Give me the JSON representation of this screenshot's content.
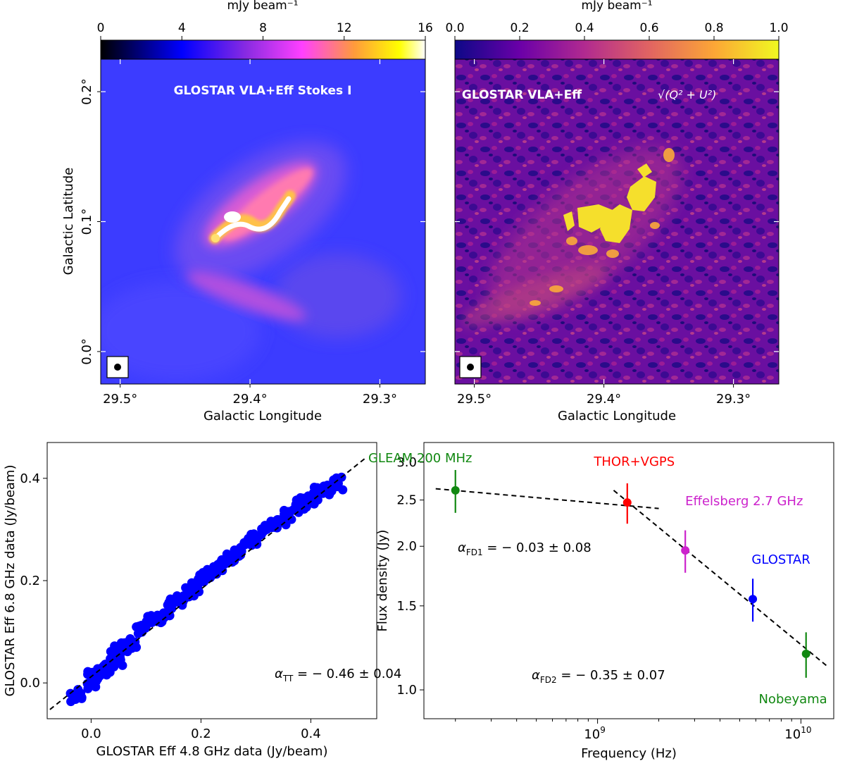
{
  "panels": {
    "a": {
      "title": "GLOSTAR VLA+Eff Stokes I",
      "colorbar": {
        "label": "mJy beam⁻¹",
        "ticks": [
          "0",
          "4",
          "8",
          "12",
          "16"
        ],
        "range": [
          0,
          16
        ],
        "colormap": "gnuplot2",
        "colors": [
          "#000000",
          "#0000ff",
          "#8a2be2",
          "#ff40ff",
          "#ff9a3c",
          "#ffff00",
          "#ffffff"
        ]
      },
      "xlabel": "Galactic Longitude",
      "ylabel": "Galactic Latitude",
      "xticks": [
        "29.5°",
        "29.4°",
        "29.3°"
      ],
      "yticks": [
        "0.0°",
        "0.1°",
        "0.2°"
      ]
    },
    "b": {
      "title_prefix": "GLOSTAR VLA+Eff",
      "title_math": "√(Q² + U²)",
      "colorbar": {
        "label": "mJy beam⁻¹",
        "ticks": [
          "0.0",
          "0.2",
          "0.4",
          "0.6",
          "0.8",
          "1.0"
        ],
        "range": [
          0.0,
          1.0
        ],
        "colormap": "plasma",
        "colors": [
          "#0d0887",
          "#6a00a8",
          "#b12a90",
          "#e16462",
          "#fca636",
          "#f0f921"
        ]
      },
      "xlabel": "Galactic Longitude",
      "xticks": [
        "29.5°",
        "29.4°",
        "29.3°"
      ]
    },
    "c": {
      "xlabel": "GLOSTAR Eff 4.8 GHz data (Jy/beam)",
      "ylabel": "GLOSTAR Eff 6.8 GHz data (Jy/beam)",
      "xticks": [
        "0.0",
        "0.2",
        "0.4"
      ],
      "yticks": [
        "0.0",
        "0.2",
        "0.4"
      ],
      "annotation_main": "α",
      "annotation_sub": "TT",
      "annotation_rest": " = − 0.46 ± 0.04"
    },
    "d": {
      "xlabel": "Frequency (Hz)",
      "ylabel": "Flux density (Jy)",
      "xticks_base": [
        "10",
        "10"
      ],
      "xticks_exp": [
        "9",
        "10"
      ],
      "yticks": [
        "1.0",
        "1.5",
        "2.0",
        "2.5",
        "3.0"
      ],
      "fit1_main": "α",
      "fit1_sub": "FD1",
      "fit1_rest": " = − 0.03 ± 0.08",
      "fit2_main": "α",
      "fit2_sub": "FD2",
      "fit2_rest": " = − 0.35 ± 0.07",
      "labels": [
        "GLEAM 200 MHz",
        "THOR+VGPS",
        "Effelsberg 2.7 GHz",
        "GLOSTAR",
        "Nobeyama"
      ]
    }
  },
  "chart_data": [
    {
      "type": "heatmap",
      "panel": "a",
      "title": "GLOSTAR VLA+Eff Stokes I",
      "xlabel": "Galactic Longitude",
      "ylabel": "Galactic Latitude",
      "xlim": [
        29.515,
        29.265
      ],
      "ylim": [
        -0.025,
        0.225
      ],
      "colorbar_range": [
        0,
        16
      ],
      "colorbar_label": "mJy beam⁻¹"
    },
    {
      "type": "heatmap",
      "panel": "b",
      "title": "GLOSTAR VLA+Eff √(Q²+U²)",
      "xlabel": "Galactic Longitude",
      "xlim": [
        29.515,
        29.265
      ],
      "ylim": [
        -0.025,
        0.225
      ],
      "colorbar_range": [
        0.0,
        1.0
      ],
      "colorbar_label": "mJy beam⁻¹"
    },
    {
      "type": "scatter",
      "panel": "c",
      "xlabel": "GLOSTAR Eff 4.8 GHz data (Jy/beam)",
      "ylabel": "GLOSTAR Eff 6.8 GHz data (Jy/beam)",
      "xlim": [
        -0.08,
        0.52
      ],
      "ylim": [
        -0.07,
        0.47
      ],
      "x": [
        -0.03,
        -0.02,
        0.0,
        0.0,
        0.01,
        0.02,
        0.02,
        0.03,
        0.04,
        0.05,
        0.05,
        0.06,
        0.07,
        0.08,
        0.09,
        0.1,
        0.11,
        0.12,
        0.13,
        0.14,
        0.15,
        0.16,
        0.17,
        0.18,
        0.19,
        0.2,
        0.21,
        0.22,
        0.23,
        0.24,
        0.25,
        0.26,
        0.27,
        0.28,
        0.29,
        0.3,
        0.31,
        0.32,
        0.33,
        0.34,
        0.35,
        0.36,
        0.37,
        0.38,
        0.39,
        0.4,
        0.41,
        0.42,
        0.43,
        0.44,
        0.45
      ],
      "y": [
        -0.03,
        -0.02,
        0.0,
        0.01,
        0.01,
        0.03,
        0.02,
        0.03,
        0.05,
        0.06,
        0.04,
        0.07,
        0.08,
        0.08,
        0.1,
        0.11,
        0.12,
        0.12,
        0.13,
        0.14,
        0.16,
        0.16,
        0.17,
        0.18,
        0.19,
        0.2,
        0.21,
        0.21,
        0.23,
        0.23,
        0.24,
        0.25,
        0.26,
        0.27,
        0.28,
        0.28,
        0.29,
        0.3,
        0.31,
        0.31,
        0.32,
        0.33,
        0.34,
        0.35,
        0.35,
        0.36,
        0.37,
        0.38,
        0.38,
        0.39,
        0.39
      ],
      "fit_line": {
        "x": [
          -0.075,
          0.5
        ],
        "y": [
          -0.052,
          0.44
        ]
      },
      "color": "#0000ff"
    },
    {
      "type": "scatter",
      "panel": "d",
      "xscale": "log",
      "yscale": "log",
      "xlabel": "Frequency (Hz)",
      "ylabel": "Flux density (Jy)",
      "xlim": [
        140000000.0,
        14500000000.0
      ],
      "ylim": [
        0.87,
        3.3
      ],
      "points": [
        {
          "label": "GLEAM 200 MHz",
          "x": 200000000.0,
          "y": 2.62,
          "err": 0.27,
          "color": "#118811"
        },
        {
          "label": "THOR+VGPS",
          "x": 1400000000.0,
          "y": 2.47,
          "err": 0.24,
          "color": "#ff0000"
        },
        {
          "label": "Effelsberg 2.7 GHz",
          "x": 2700000000.0,
          "y": 1.96,
          "err": 0.2,
          "color": "#cc22cc"
        },
        {
          "label": "GLOSTAR",
          "x": 5800000000.0,
          "y": 1.55,
          "err": 0.16,
          "color": "#0000ff"
        },
        {
          "label": "Nobeyama",
          "x": 10600000000.0,
          "y": 1.19,
          "err": 0.13,
          "color": "#118811"
        }
      ],
      "fit1": {
        "x": [
          160000000.0,
          2000000000.0
        ],
        "y": [
          2.64,
          2.4
        ]
      },
      "fit2": {
        "x": [
          1200000000.0,
          13500000000.0
        ],
        "y": [
          2.62,
          1.12
        ]
      }
    }
  ]
}
